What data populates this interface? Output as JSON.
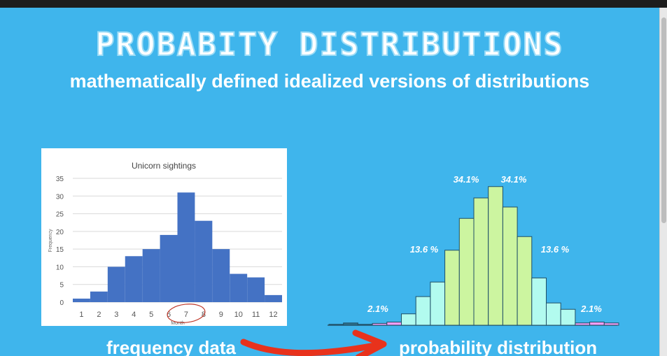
{
  "slide": {
    "title": "PROBABITY DISTRIBUTIONS",
    "subtitle": "mathematically defined idealized versions of distributions",
    "left_label": "frequency data",
    "right_label": "probability distribution"
  },
  "colors": {
    "background": "#3fb5ec",
    "bar_blue": "#4472c4",
    "dist_green": "#ccf5a0",
    "dist_cyan": "#b2fbef",
    "dist_pink": "#f29cf2",
    "arrow_red": "#e8321c"
  },
  "icons": [
    "red-arrow-icon",
    "red-circle-annotation"
  ],
  "chart_data": [
    {
      "type": "bar",
      "title": "Unicorn sightings",
      "xlabel": "Month",
      "ylabel": "Frequency",
      "categories": [
        "1",
        "2",
        "3",
        "4",
        "5",
        "6",
        "7",
        "8",
        "9",
        "10",
        "11",
        "12"
      ],
      "values": [
        1,
        3,
        10,
        13,
        15,
        19,
        31,
        23,
        15,
        8,
        7,
        2
      ],
      "ylim": [
        0,
        35
      ],
      "yticks": [
        "0",
        "5",
        "10",
        "15",
        "20",
        "25",
        "30",
        "35"
      ],
      "grid": true,
      "annotation": "red circle around months 6-8"
    },
    {
      "type": "bar",
      "title": "",
      "bars": [
        0.2,
        0.5,
        0.2,
        0.4,
        0.7,
        2.5,
        6.3,
        9.5,
        16.5,
        23.5,
        28,
        30.5,
        26,
        19.5,
        10.4,
        4.9,
        3.5,
        0.5,
        0.7,
        0.5
      ],
      "bar_colors": [
        "dark",
        "dark",
        "dark",
        "pink",
        "pink",
        "cyan",
        "cyan",
        "cyan",
        "green",
        "green",
        "green",
        "green",
        "green",
        "green",
        "cyan",
        "cyan",
        "cyan",
        "pink",
        "pink",
        "pink"
      ],
      "annotations": [
        "34.1%",
        "34.1%",
        "13.6 %",
        "13.6 %",
        "2.1%",
        "2.1%"
      ]
    }
  ]
}
